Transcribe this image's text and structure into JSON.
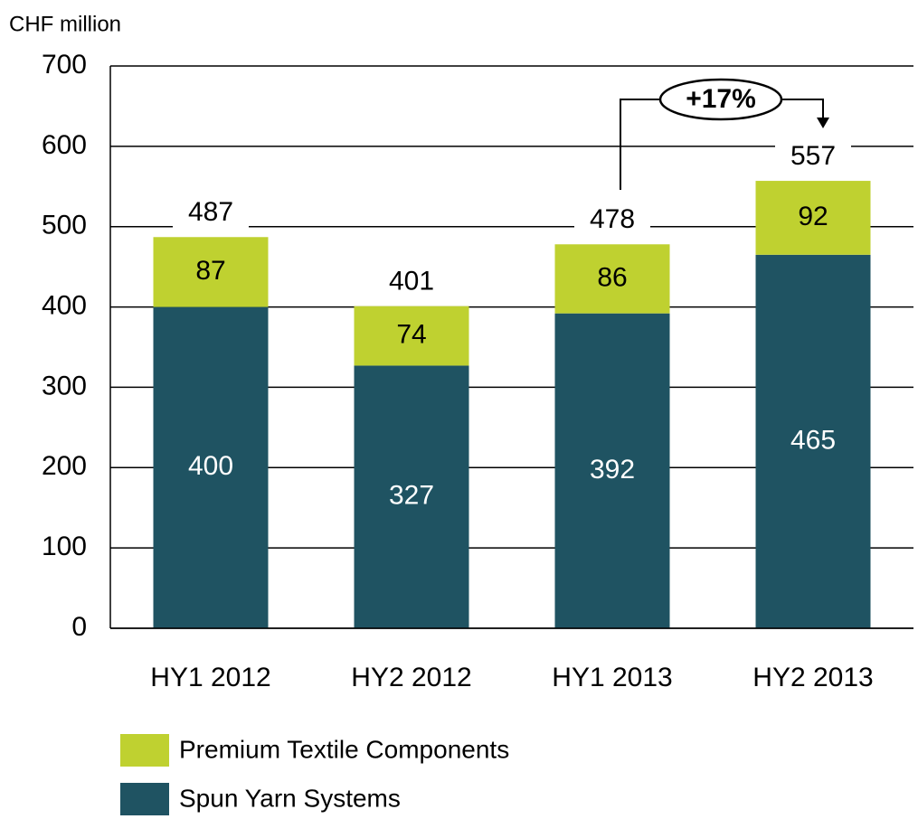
{
  "chart_data": {
    "type": "stacked_bar",
    "y_label": "CHF million",
    "categories": [
      "HY1 2012",
      "HY2 2012",
      "HY1 2013",
      "HY2 2013"
    ],
    "series": [
      {
        "name": "Spun Yarn Systems",
        "color": "#1f5362",
        "values": [
          400,
          327,
          392,
          465
        ]
      },
      {
        "name": "Premium Textile Components",
        "color": "#bfd130",
        "values": [
          87,
          74,
          86,
          92
        ]
      }
    ],
    "totals": [
      487,
      401,
      478,
      557
    ],
    "annotation": "+17%",
    "ylim": [
      0,
      700
    ],
    "yticks": [
      0,
      100,
      200,
      300,
      400,
      500,
      600,
      700
    ],
    "grid": true
  }
}
